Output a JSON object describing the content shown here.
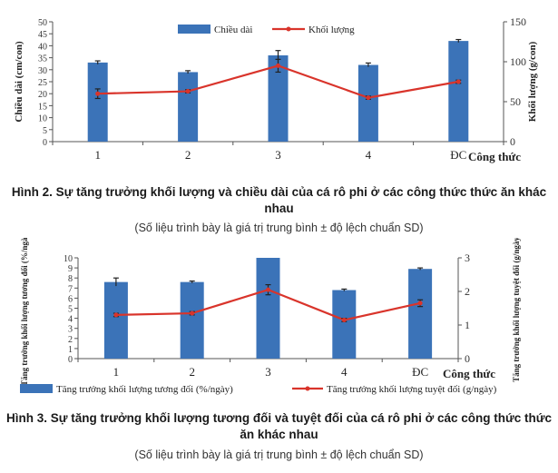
{
  "figure2": {
    "caption_title": "Hình 2. Sự tăng trưởng khối lượng và chiều dài của cá rô phi ở các công thức thức ăn khác nhau",
    "caption_note": "(Số liệu trình bày là giá trị trung bình ± độ lệch chuẩn SD)"
  },
  "figure3": {
    "caption_title": "Hình 3. Sự tăng trưởng khối lượng tương đối và tuyệt đối của cá rô phi ở các công thức thức ăn khác nhau",
    "caption_note": "(Số liệu trình bày là giá trị trung bình ± độ lệch chuẩn SD)"
  },
  "colors": {
    "bar": "#3b73b8",
    "line": "#d9342b",
    "axis": "#555555"
  },
  "chart_data": [
    {
      "type": "bar",
      "categories": [
        "1",
        "2",
        "3",
        "4",
        "ĐC"
      ],
      "xlabel": "Công thức",
      "ylabel_left": "Chiều dài (cm/con)",
      "ylabel_right": "Khối lượng (g/con)",
      "legend_position": "top",
      "y_left": {
        "ticks": [
          0,
          5,
          10,
          15,
          20,
          25,
          30,
          35,
          40,
          45,
          50
        ],
        "ylim": [
          0,
          50
        ],
        "tick_labels_shown": [
          "0",
          "5",
          "10",
          "15",
          "20",
          "25",
          "30",
          "35",
          "40",
          "45",
          "50"
        ]
      },
      "y_right": {
        "ylim": [
          0,
          150
        ],
        "ticks": [
          0,
          50,
          100,
          150
        ]
      },
      "series": [
        {
          "name": "Chiều dài",
          "kind": "bar",
          "axis": "left",
          "values": [
            33,
            29,
            36,
            32,
            42
          ],
          "errors": [
            0.7,
            0.6,
            2.0,
            0.8,
            0.6
          ]
        },
        {
          "name": "Khối lượng",
          "kind": "line",
          "axis": "right",
          "values": [
            60,
            63,
            95,
            55,
            75
          ],
          "errors": [
            6,
            2,
            8,
            2,
            2
          ]
        }
      ]
    },
    {
      "type": "bar",
      "categories": [
        "1",
        "2",
        "3",
        "4",
        "ĐC"
      ],
      "xlabel": "Công thức",
      "ylabel_left": "Tăng trưởng khối lượng tương đối (%/ngày)",
      "ylabel_right": "Tăng trưởng khối lượng tuyệt đối (g/ngày)",
      "legend_position": "bottom",
      "y_left": {
        "ylim": [
          0,
          10
        ],
        "ticks": [
          0,
          1,
          2,
          3,
          4,
          5,
          6,
          7,
          8,
          9,
          10
        ],
        "tick_labels_shown": [
          "0",
          "1",
          "2",
          "3",
          "4",
          "5",
          "6",
          "7",
          "8",
          "9",
          "10"
        ]
      },
      "y_right": {
        "ylim": [
          0,
          3
        ],
        "ticks": [
          0,
          1,
          2,
          3
        ]
      },
      "series": [
        {
          "name": "Tăng trưởng khối lượng tương đối (%/ngày)",
          "kind": "bar",
          "axis": "left",
          "values": [
            7.6,
            7.6,
            10.0,
            6.8,
            8.9
          ],
          "errors": [
            0.4,
            0.1,
            0.0,
            0.1,
            0.1
          ]
        },
        {
          "name": "Tăng trưởng khối lượng tuyệt đối (g/ngày)",
          "kind": "line",
          "axis": "right",
          "values": [
            1.3,
            1.35,
            2.05,
            1.15,
            1.65
          ],
          "errors": [
            0.05,
            0.05,
            0.15,
            0.05,
            0.1
          ]
        }
      ]
    }
  ]
}
